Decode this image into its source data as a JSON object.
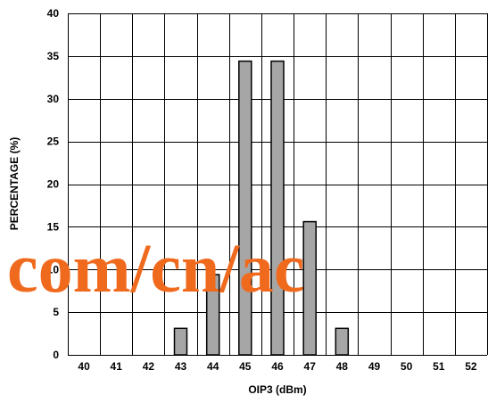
{
  "chart_data": {
    "type": "bar",
    "categories": [
      "40",
      "41",
      "42",
      "43",
      "44",
      "45",
      "46",
      "47",
      "48",
      "49",
      "50",
      "51",
      "52"
    ],
    "values": [
      0,
      0,
      0,
      3.1,
      9.4,
      34.4,
      34.4,
      15.6,
      3.1,
      0,
      0,
      0,
      0
    ],
    "xlabel": "OIP3 (dBm)",
    "ylabel": "PERCENTAGE (%)",
    "ylim": [
      0,
      40
    ],
    "yticks": [
      "0",
      "5",
      "10",
      "15",
      "20",
      "25",
      "30",
      "35",
      "40"
    ],
    "grid": true,
    "bar_color": "#a6a6a6",
    "bar_edge_color": "#000000"
  },
  "watermark": "com/cn/ac",
  "colors": {
    "watermark": "#f06a1e",
    "grid": "#000000"
  }
}
